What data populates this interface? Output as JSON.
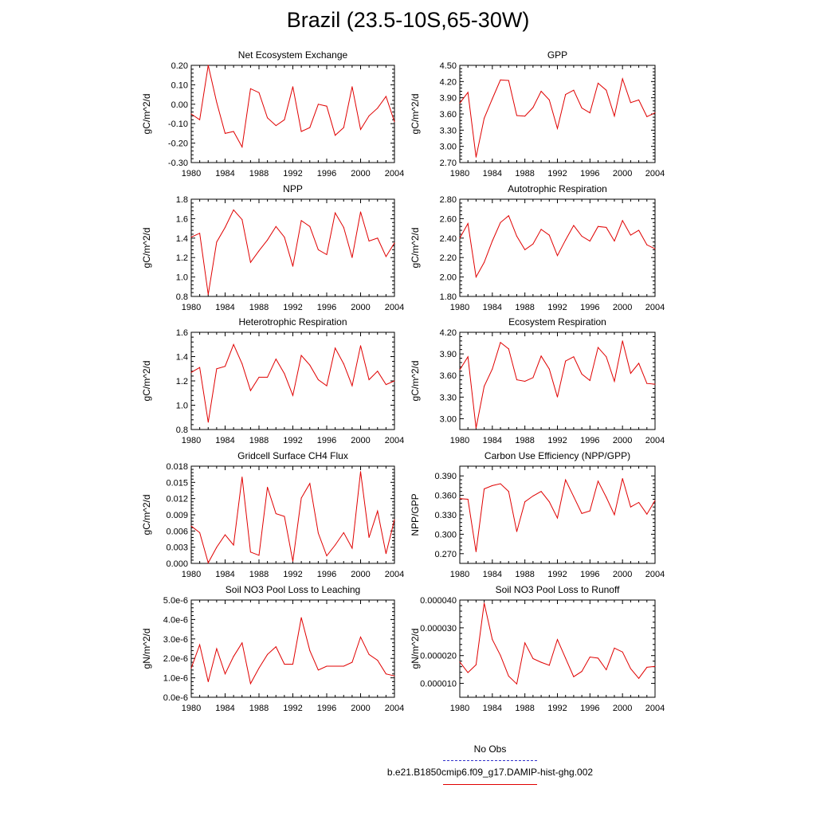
{
  "page": {
    "title": "Brazil (23.5-10S,65-30W)"
  },
  "legend": {
    "entries": [
      {
        "label": "No Obs",
        "color": "#3333cc",
        "dash": true
      },
      {
        "label": "b.e21.B1850cmip6.f09_g17.DAMIP-hist-ghg.002",
        "color": "#e00000",
        "dash": false
      }
    ]
  },
  "chart_data": [
    {
      "type": "line",
      "title": "Net Ecosystem Exchange",
      "ylabel": "gC/m^2/d",
      "ylim": [
        -0.3,
        0.2
      ],
      "yticks": [
        0.2,
        0.1,
        0.0,
        -0.1,
        -0.2,
        -0.3
      ],
      "ytick_labels": [
        "0.20",
        "0.10",
        "0.00",
        "-0.10",
        "-0.20",
        "-0.30"
      ],
      "xlim": [
        1980,
        2004
      ],
      "xticks": [
        1980,
        1984,
        1988,
        1992,
        1996,
        2000,
        2004
      ],
      "xtick_labels": [
        "1980",
        "1984",
        "1988",
        "1992",
        "1996",
        "2000",
        "2004"
      ],
      "series": [
        {
          "color": "#e00000",
          "x": [
            1980,
            1981,
            1982,
            1983,
            1984,
            1985,
            1986,
            1987,
            1988,
            1989,
            1990,
            1991,
            1992,
            1993,
            1994,
            1995,
            1996,
            1997,
            1998,
            1999,
            2000,
            2001,
            2002,
            2003,
            2004
          ],
          "y": [
            -0.05,
            -0.08,
            0.2,
            0.01,
            -0.15,
            -0.14,
            -0.22,
            0.08,
            0.06,
            -0.07,
            -0.11,
            -0.08,
            0.09,
            -0.14,
            -0.12,
            0.0,
            -0.01,
            -0.16,
            -0.12,
            0.09,
            -0.13,
            -0.06,
            -0.02,
            0.04,
            -0.09
          ]
        }
      ]
    },
    {
      "type": "line",
      "title": "GPP",
      "ylabel": "gC/m^2/d",
      "ylim": [
        2.7,
        4.5
      ],
      "yticks": [
        4.5,
        4.2,
        3.9,
        3.6,
        3.3,
        3.0,
        2.7
      ],
      "ytick_labels": [
        "4.50",
        "4.20",
        "3.90",
        "3.60",
        "3.30",
        "3.00",
        "2.70"
      ],
      "xlim": [
        1980,
        2004
      ],
      "xticks": [
        1980,
        1984,
        1988,
        1992,
        1996,
        2000,
        2004
      ],
      "xtick_labels": [
        "1980",
        "1984",
        "1988",
        "1992",
        "1996",
        "2000",
        "2004"
      ],
      "series": [
        {
          "color": "#e00000",
          "x": [
            1980,
            1981,
            1982,
            1983,
            1984,
            1985,
            1986,
            1987,
            1988,
            1989,
            1990,
            1991,
            1992,
            1993,
            1994,
            1995,
            1996,
            1997,
            1998,
            1999,
            2000,
            2001,
            2002,
            2003,
            2004
          ],
          "y": [
            3.8,
            4.0,
            2.8,
            3.52,
            3.88,
            4.23,
            4.22,
            3.57,
            3.56,
            3.72,
            4.02,
            3.86,
            3.33,
            3.96,
            4.04,
            3.71,
            3.62,
            4.17,
            4.04,
            3.56,
            4.25,
            3.81,
            3.86,
            3.55,
            3.62
          ]
        }
      ]
    },
    {
      "type": "line",
      "title": "NPP",
      "ylabel": "gC/m^2/d",
      "ylim": [
        0.8,
        1.8
      ],
      "yticks": [
        1.8,
        1.6,
        1.4,
        1.2,
        1.0,
        0.8
      ],
      "ytick_labels": [
        "1.8",
        "1.6",
        "1.4",
        "1.2",
        "1.0",
        "0.8"
      ],
      "xlim": [
        1980,
        2004
      ],
      "xticks": [
        1980,
        1984,
        1988,
        1992,
        1996,
        2000,
        2004
      ],
      "xtick_labels": [
        "1980",
        "1984",
        "1988",
        "1992",
        "1996",
        "2000",
        "2004"
      ],
      "series": [
        {
          "color": "#e00000",
          "x": [
            1980,
            1981,
            1982,
            1983,
            1984,
            1985,
            1986,
            1987,
            1988,
            1989,
            1990,
            1991,
            1992,
            1993,
            1994,
            1995,
            1996,
            1997,
            1998,
            1999,
            2000,
            2001,
            2002,
            2003,
            2004
          ],
          "y": [
            1.41,
            1.45,
            0.82,
            1.36,
            1.51,
            1.69,
            1.59,
            1.15,
            1.27,
            1.38,
            1.52,
            1.41,
            1.11,
            1.58,
            1.52,
            1.28,
            1.23,
            1.66,
            1.51,
            1.2,
            1.67,
            1.37,
            1.4,
            1.21,
            1.35
          ]
        }
      ]
    },
    {
      "type": "line",
      "title": "Autotrophic Respiration",
      "ylabel": "gC/m^2/d",
      "ylim": [
        1.8,
        2.8
      ],
      "yticks": [
        2.8,
        2.6,
        2.4,
        2.2,
        2.0,
        1.8
      ],
      "ytick_labels": [
        "2.80",
        "2.60",
        "2.40",
        "2.20",
        "2.00",
        "1.80"
      ],
      "xlim": [
        1980,
        2004
      ],
      "xticks": [
        1980,
        1984,
        1988,
        1992,
        1996,
        2000,
        2004
      ],
      "xtick_labels": [
        "1980",
        "1984",
        "1988",
        "1992",
        "1996",
        "2000",
        "2004"
      ],
      "series": [
        {
          "color": "#e00000",
          "x": [
            1980,
            1981,
            1982,
            1983,
            1984,
            1985,
            1986,
            1987,
            1988,
            1989,
            1990,
            1991,
            1992,
            1993,
            1994,
            1995,
            1996,
            1997,
            1998,
            1999,
            2000,
            2001,
            2002,
            2003,
            2004
          ],
          "y": [
            2.4,
            2.55,
            2.0,
            2.15,
            2.37,
            2.56,
            2.63,
            2.42,
            2.28,
            2.34,
            2.49,
            2.43,
            2.22,
            2.38,
            2.53,
            2.42,
            2.37,
            2.52,
            2.51,
            2.37,
            2.58,
            2.43,
            2.48,
            2.33,
            2.29
          ]
        }
      ]
    },
    {
      "type": "line",
      "title": "Heterotrophic Respiration",
      "ylabel": "gC/m^2/d",
      "ylim": [
        0.8,
        1.6
      ],
      "yticks": [
        1.6,
        1.4,
        1.2,
        1.0,
        0.8
      ],
      "ytick_labels": [
        "1.6",
        "1.4",
        "1.2",
        "1.0",
        "0.8"
      ],
      "xlim": [
        1980,
        2004
      ],
      "xticks": [
        1980,
        1984,
        1988,
        1992,
        1996,
        2000,
        2004
      ],
      "xtick_labels": [
        "1980",
        "1984",
        "1988",
        "1992",
        "1996",
        "2000",
        "2004"
      ],
      "series": [
        {
          "color": "#e00000",
          "x": [
            1980,
            1981,
            1982,
            1983,
            1984,
            1985,
            1986,
            1987,
            1988,
            1989,
            1990,
            1991,
            1992,
            1993,
            1994,
            1995,
            1996,
            1997,
            1998,
            1999,
            2000,
            2001,
            2002,
            2003,
            2004
          ],
          "y": [
            1.27,
            1.31,
            0.86,
            1.3,
            1.32,
            1.5,
            1.34,
            1.12,
            1.23,
            1.23,
            1.38,
            1.26,
            1.08,
            1.41,
            1.33,
            1.21,
            1.16,
            1.47,
            1.34,
            1.16,
            1.49,
            1.21,
            1.28,
            1.17,
            1.2
          ]
        }
      ]
    },
    {
      "type": "line",
      "title": "Ecosystem Respiration",
      "ylabel": "gC/m^2/d",
      "ylim": [
        2.85,
        4.2
      ],
      "yticks": [
        4.2,
        3.9,
        3.6,
        3.3,
        3.0
      ],
      "ytick_labels": [
        "4.20",
        "3.90",
        "3.60",
        "3.30",
        "3.00"
      ],
      "xlim": [
        1980,
        2004
      ],
      "xticks": [
        1980,
        1984,
        1988,
        1992,
        1996,
        2000,
        2004
      ],
      "xtick_labels": [
        "1980",
        "1984",
        "1988",
        "1992",
        "1996",
        "2000",
        "2004"
      ],
      "series": [
        {
          "color": "#e00000",
          "x": [
            1980,
            1981,
            1982,
            1983,
            1984,
            1985,
            1986,
            1987,
            1988,
            1989,
            1990,
            1991,
            1992,
            1993,
            1994,
            1995,
            1996,
            1997,
            1998,
            1999,
            2000,
            2001,
            2002,
            2003,
            2004
          ],
          "y": [
            3.68,
            3.86,
            2.87,
            3.45,
            3.69,
            4.06,
            3.97,
            3.54,
            3.52,
            3.57,
            3.87,
            3.69,
            3.3,
            3.8,
            3.86,
            3.62,
            3.53,
            3.99,
            3.86,
            3.52,
            4.08,
            3.63,
            3.77,
            3.49,
            3.48
          ]
        }
      ]
    },
    {
      "type": "line",
      "title": "Gridcell Surface CH4 Flux",
      "ylabel": "gC/m^2/d",
      "ylim": [
        0.0,
        0.018
      ],
      "yticks": [
        0.018,
        0.015,
        0.012,
        0.009,
        0.006,
        0.003,
        0.0
      ],
      "ytick_labels": [
        "0.018",
        "0.015",
        "0.012",
        "0.009",
        "0.006",
        "0.003",
        "0.000"
      ],
      "xlim": [
        1980,
        2004
      ],
      "xticks": [
        1980,
        1984,
        1988,
        1992,
        1996,
        2000,
        2004
      ],
      "xtick_labels": [
        "1980",
        "1984",
        "1988",
        "1992",
        "1996",
        "2000",
        "2004"
      ],
      "series": [
        {
          "color": "#e00000",
          "x": [
            1980,
            1981,
            1982,
            1983,
            1984,
            1985,
            1986,
            1987,
            1988,
            1989,
            1990,
            1991,
            1992,
            1993,
            1994,
            1995,
            1996,
            1997,
            1998,
            1999,
            2000,
            2001,
            2002,
            2003,
            2004
          ],
          "y": [
            0.0069,
            0.0057,
            0.0001,
            0.003,
            0.0053,
            0.0034,
            0.016,
            0.0021,
            0.0015,
            0.0141,
            0.0092,
            0.0087,
            0.0004,
            0.0121,
            0.0148,
            0.0056,
            0.0014,
            0.0034,
            0.0057,
            0.0028,
            0.017,
            0.0048,
            0.0097,
            0.0018,
            0.0081
          ]
        }
      ]
    },
    {
      "type": "line",
      "title": "Carbon Use Efficiency (NPP/GPP)",
      "ylabel": "NPP/GPP",
      "ylim": [
        0.255,
        0.405
      ],
      "yticks": [
        0.39,
        0.36,
        0.33,
        0.3,
        0.27
      ],
      "ytick_labels": [
        "0.390",
        "0.360",
        "0.330",
        "0.300",
        "0.270"
      ],
      "xlim": [
        1980,
        2004
      ],
      "xticks": [
        1980,
        1984,
        1988,
        1992,
        1996,
        2000,
        2004
      ],
      "xtick_labels": [
        "1980",
        "1984",
        "1988",
        "1992",
        "1996",
        "2000",
        "2004"
      ],
      "series": [
        {
          "color": "#e00000",
          "x": [
            1980,
            1981,
            1982,
            1983,
            1984,
            1985,
            1986,
            1987,
            1988,
            1989,
            1990,
            1991,
            1992,
            1993,
            1994,
            1995,
            1996,
            1997,
            1998,
            1999,
            2000,
            2001,
            2002,
            2003,
            2004
          ],
          "y": [
            0.355,
            0.354,
            0.273,
            0.37,
            0.375,
            0.378,
            0.366,
            0.304,
            0.35,
            0.359,
            0.366,
            0.35,
            0.325,
            0.384,
            0.358,
            0.332,
            0.336,
            0.382,
            0.357,
            0.33,
            0.386,
            0.342,
            0.349,
            0.331,
            0.352
          ]
        }
      ]
    },
    {
      "type": "line",
      "title": "Soil NO3 Pool Loss to Leaching",
      "ylabel": "gN/m^2/d",
      "ylim": [
        0.0,
        5e-06
      ],
      "yticks": [
        5e-06,
        4e-06,
        3e-06,
        2e-06,
        1e-06,
        0.0
      ],
      "ytick_labels": [
        "5.0e-6",
        "4.0e-6",
        "3.0e-6",
        "2.0e-6",
        "1.0e-6",
        "0.0e-6"
      ],
      "xlim": [
        1980,
        2004
      ],
      "xticks": [
        1980,
        1984,
        1988,
        1992,
        1996,
        2000,
        2004
      ],
      "xtick_labels": [
        "1980",
        "1984",
        "1988",
        "1992",
        "1996",
        "2000",
        "2004"
      ],
      "series": [
        {
          "color": "#e00000",
          "x": [
            1980,
            1981,
            1982,
            1983,
            1984,
            1985,
            1986,
            1987,
            1988,
            1989,
            1990,
            1991,
            1992,
            1993,
            1994,
            1995,
            1996,
            1997,
            1998,
            1999,
            2000,
            2001,
            2002,
            2003,
            2004
          ],
          "y": [
            1.5e-06,
            2.7e-06,
            8e-07,
            2.5e-06,
            1.2e-06,
            2.1e-06,
            2.8e-06,
            7e-07,
            1.5e-06,
            2.2e-06,
            2.6e-06,
            1.7e-06,
            1.7e-06,
            4.1e-06,
            2.4e-06,
            1.4e-06,
            1.6e-06,
            1.6e-06,
            1.6e-06,
            1.8e-06,
            3.1e-06,
            2.2e-06,
            1.9e-06,
            1.2e-06,
            1.1e-06
          ]
        }
      ]
    },
    {
      "type": "line",
      "title": "Soil NO3 Pool Loss to Runoff",
      "ylabel": "gN/m^2/d",
      "ylim": [
        5e-06,
        4e-05
      ],
      "yticks": [
        4e-05,
        3e-05,
        2e-05,
        1e-05
      ],
      "ytick_labels": [
        "0.000040",
        "0.000030",
        "0.000020",
        "0.000010"
      ],
      "xlim": [
        1980,
        2004
      ],
      "xticks": [
        1980,
        1984,
        1988,
        1992,
        1996,
        2000,
        2004
      ],
      "xtick_labels": [
        "1980",
        "1984",
        "1988",
        "1992",
        "1996",
        "2000",
        "2004"
      ],
      "series": [
        {
          "color": "#e00000",
          "x": [
            1980,
            1981,
            1982,
            1983,
            1984,
            1985,
            1986,
            1987,
            1988,
            1989,
            1990,
            1991,
            1992,
            1993,
            1994,
            1995,
            1996,
            1997,
            1998,
            1999,
            2000,
            2001,
            2002,
            2003,
            2004
          ],
          "y": [
            1.77e-05,
            1.39e-05,
            1.67e-05,
            3.89e-05,
            2.58e-05,
            2.01e-05,
            1.26e-05,
            9.8e-06,
            2.46e-05,
            1.89e-05,
            1.76e-05,
            1.65e-05,
            2.58e-05,
            1.91e-05,
            1.24e-05,
            1.43e-05,
            1.95e-05,
            1.91e-05,
            1.49e-05,
            2.27e-05,
            2.13e-05,
            1.53e-05,
            1.18e-05,
            1.58e-05,
            1.61e-05
          ]
        }
      ]
    }
  ]
}
